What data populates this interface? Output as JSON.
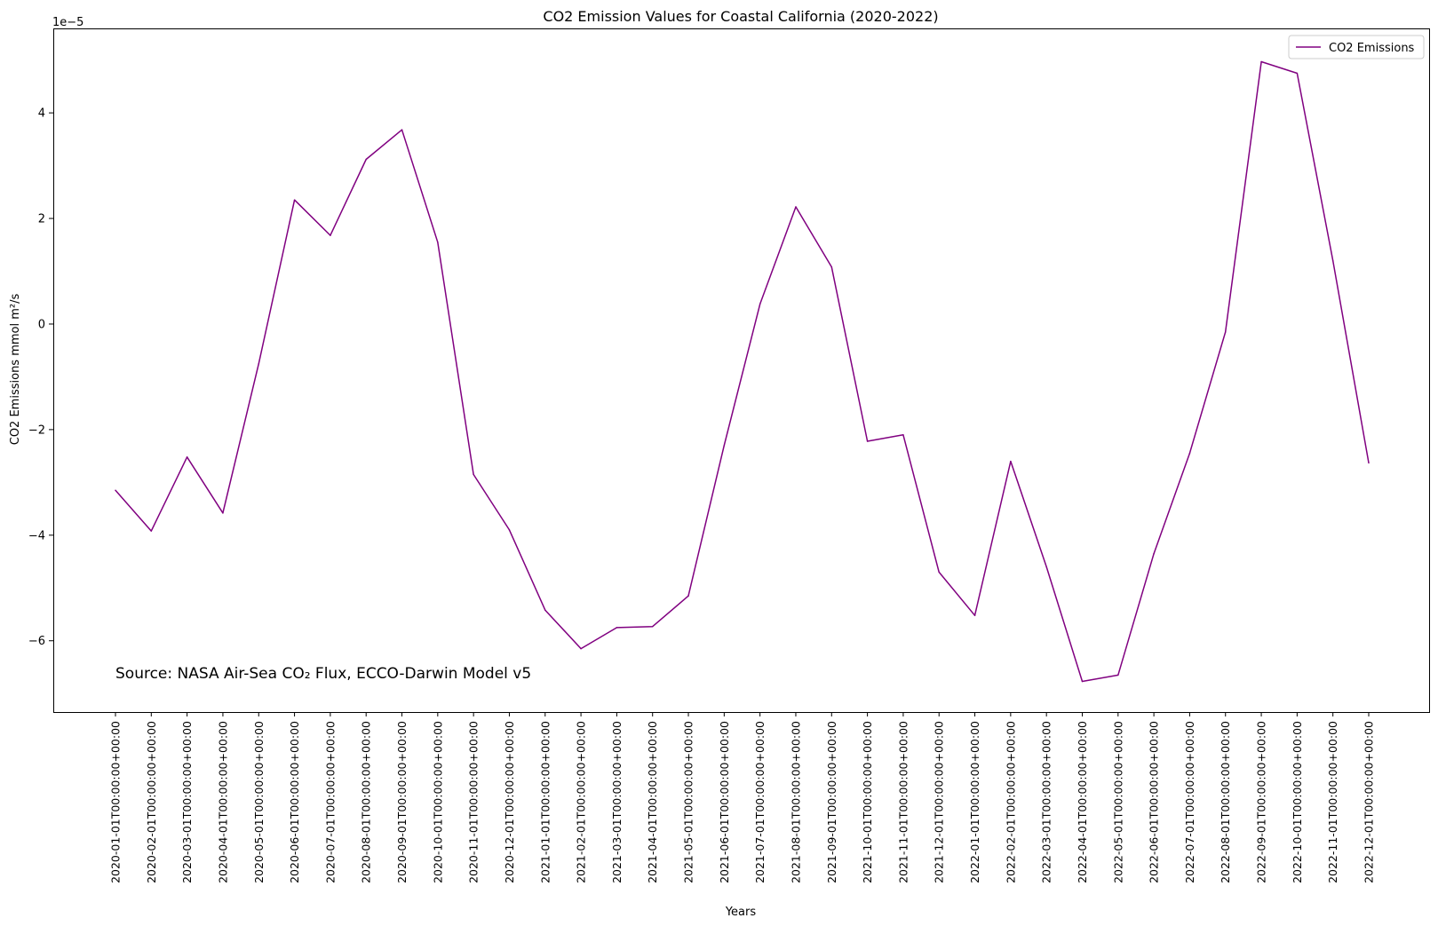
{
  "chart_data": {
    "type": "line",
    "title": "CO2 Emission Values for Coastal California (2020-2022)",
    "xlabel": "Years",
    "ylabel": "CO2 Emissions mmol m²/s",
    "y_offset_label": "1e−5",
    "y_scale_factor": 1e-05,
    "ylim": [
      -7.35,
      5.6
    ],
    "yticks": [
      -6,
      -4,
      -2,
      0,
      2,
      4
    ],
    "ytick_labels": [
      "−6",
      "−4",
      "−2",
      "0",
      "2",
      "4"
    ],
    "grid": false,
    "legend_position": "top-right",
    "annotation": "Source: NASA Air-Sea CO₂ Flux, ECCO-Darwin Model v5",
    "annotation_color": "#0000ff",
    "x": [
      "2020-01-01T00:00:00+00:00",
      "2020-02-01T00:00:00+00:00",
      "2020-03-01T00:00:00+00:00",
      "2020-04-01T00:00:00+00:00",
      "2020-05-01T00:00:00+00:00",
      "2020-06-01T00:00:00+00:00",
      "2020-07-01T00:00:00+00:00",
      "2020-08-01T00:00:00+00:00",
      "2020-09-01T00:00:00+00:00",
      "2020-10-01T00:00:00+00:00",
      "2020-11-01T00:00:00+00:00",
      "2020-12-01T00:00:00+00:00",
      "2021-01-01T00:00:00+00:00",
      "2021-02-01T00:00:00+00:00",
      "2021-03-01T00:00:00+00:00",
      "2021-04-01T00:00:00+00:00",
      "2021-05-01T00:00:00+00:00",
      "2021-06-01T00:00:00+00:00",
      "2021-07-01T00:00:00+00:00",
      "2021-08-01T00:00:00+00:00",
      "2021-09-01T00:00:00+00:00",
      "2021-10-01T00:00:00+00:00",
      "2021-11-01T00:00:00+00:00",
      "2021-12-01T00:00:00+00:00",
      "2022-01-01T00:00:00+00:00",
      "2022-02-01T00:00:00+00:00",
      "2022-03-01T00:00:00+00:00",
      "2022-04-01T00:00:00+00:00",
      "2022-05-01T00:00:00+00:00",
      "2022-06-01T00:00:00+00:00",
      "2022-07-01T00:00:00+00:00",
      "2022-08-01T00:00:00+00:00",
      "2022-09-01T00:00:00+00:00",
      "2022-10-01T00:00:00+00:00",
      "2022-11-01T00:00:00+00:00",
      "2022-12-01T00:00:00+00:00"
    ],
    "series": [
      {
        "name": "CO2 Emissions",
        "color": "#800080",
        "values": [
          -3.15,
          -3.92,
          -2.52,
          -3.58,
          -0.75,
          2.35,
          1.68,
          3.12,
          3.68,
          1.55,
          -2.85,
          -3.9,
          -5.42,
          -6.15,
          -5.75,
          -5.73,
          -5.15,
          -2.3,
          0.38,
          2.22,
          1.08,
          -2.22,
          -2.1,
          -4.7,
          -5.52,
          -2.6,
          -4.6,
          -6.77,
          -6.65,
          -4.35,
          -2.45,
          -0.15,
          4.97,
          4.75,
          1.2,
          -2.63
        ]
      }
    ]
  }
}
